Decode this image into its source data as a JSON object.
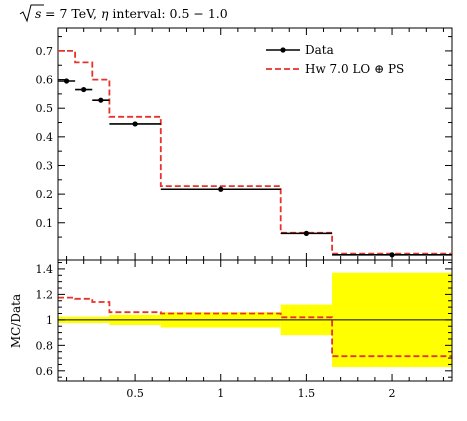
{
  "chart_data": [
    {
      "type": "line",
      "title": "√s = 7 TeV, η interval: 0.5 − 1.0",
      "title_parts": {
        "prefix": "s",
        "mid": " = 7 TeV, ",
        "eta": "η",
        "suffix": " interval: 0.5 − 1.0"
      },
      "xlabel": "",
      "ylabel": "",
      "xlim": [
        0.05,
        2.35
      ],
      "ylim": [
        -0.03,
        0.78
      ],
      "y_ticks": [
        0.1,
        0.2,
        0.3,
        0.4,
        0.5,
        0.6,
        0.7
      ],
      "y_tick_labels": [
        "0.1",
        "0.2",
        "0.3",
        "0.4",
        "0.5",
        "0.6",
        "0.7"
      ],
      "legend_position": "top-right",
      "series": [
        {
          "name": "Data",
          "style": "points-with-xerr",
          "color": "#000000",
          "points": [
            {
              "x": 0.1,
              "y": 0.595,
              "xlo": 0.05,
              "xhi": 0.15
            },
            {
              "x": 0.2,
              "y": 0.565,
              "xlo": 0.15,
              "xhi": 0.25
            },
            {
              "x": 0.3,
              "y": 0.528,
              "xlo": 0.25,
              "xhi": 0.35
            },
            {
              "x": 0.5,
              "y": 0.445,
              "xlo": 0.35,
              "xhi": 0.65
            },
            {
              "x": 1.0,
              "y": 0.217,
              "xlo": 0.65,
              "xhi": 1.35
            },
            {
              "x": 1.5,
              "y": 0.063,
              "xlo": 1.35,
              "xhi": 1.65
            },
            {
              "x": 2.0,
              "y": -0.012,
              "xlo": 1.65,
              "xhi": 2.35
            }
          ]
        },
        {
          "name": "Hw 7.0 LO ⊕ PS",
          "style": "dashed-step",
          "color": "#e8312a",
          "bins": [
            {
              "xlo": 0.05,
              "xhi": 0.15,
              "y": 0.7
            },
            {
              "xlo": 0.15,
              "xhi": 0.25,
              "y": 0.66
            },
            {
              "xlo": 0.25,
              "xhi": 0.35,
              "y": 0.6
            },
            {
              "xlo": 0.35,
              "xhi": 0.65,
              "y": 0.47
            },
            {
              "xlo": 0.65,
              "xhi": 1.35,
              "y": 0.228
            },
            {
              "xlo": 1.35,
              "xhi": 1.65,
              "y": 0.065
            },
            {
              "xlo": 1.65,
              "xhi": 2.35,
              "y": -0.008
            }
          ]
        }
      ]
    },
    {
      "type": "line",
      "xlabel": "",
      "ylabel": "MC/Data",
      "xlim": [
        0.05,
        2.35
      ],
      "ylim": [
        0.52,
        1.47
      ],
      "x_ticks": [
        0.5,
        1,
        1.5,
        2
      ],
      "x_tick_labels": [
        "0.5",
        "1",
        "1.5",
        "2"
      ],
      "y_ticks": [
        0.6,
        0.8,
        1.0,
        1.2,
        1.4
      ],
      "y_tick_labels": [
        "0.6",
        "0.8",
        "1",
        "1.2",
        "1.4"
      ],
      "reference_line": 1.0,
      "uncertainty_color": "#ffff00",
      "uncertainty_band": [
        {
          "xlo": 0.05,
          "xhi": 0.35,
          "lo": 0.975,
          "hi": 1.025
        },
        {
          "xlo": 0.35,
          "xhi": 0.65,
          "lo": 0.96,
          "hi": 1.04
        },
        {
          "xlo": 0.65,
          "xhi": 1.35,
          "lo": 0.94,
          "hi": 1.06
        },
        {
          "xlo": 1.35,
          "xhi": 1.65,
          "lo": 0.88,
          "hi": 1.12
        },
        {
          "xlo": 1.65,
          "xhi": 2.35,
          "lo": 0.63,
          "hi": 1.37
        }
      ],
      "series": [
        {
          "name": "Hw 7.0 LO ⊕ PS",
          "style": "dashed-step",
          "color": "#e8312a",
          "bins": [
            {
              "xlo": 0.05,
              "xhi": 0.15,
              "y": 1.175
            },
            {
              "xlo": 0.15,
              "xhi": 0.25,
              "y": 1.165
            },
            {
              "xlo": 0.25,
              "xhi": 0.35,
              "y": 1.14
            },
            {
              "xlo": 0.35,
              "xhi": 0.65,
              "y": 1.06
            },
            {
              "xlo": 0.65,
              "xhi": 1.35,
              "y": 1.05
            },
            {
              "xlo": 1.35,
              "xhi": 1.65,
              "y": 1.02
            },
            {
              "xlo": 1.65,
              "xhi": 2.35,
              "y": 0.715
            }
          ]
        }
      ]
    }
  ]
}
